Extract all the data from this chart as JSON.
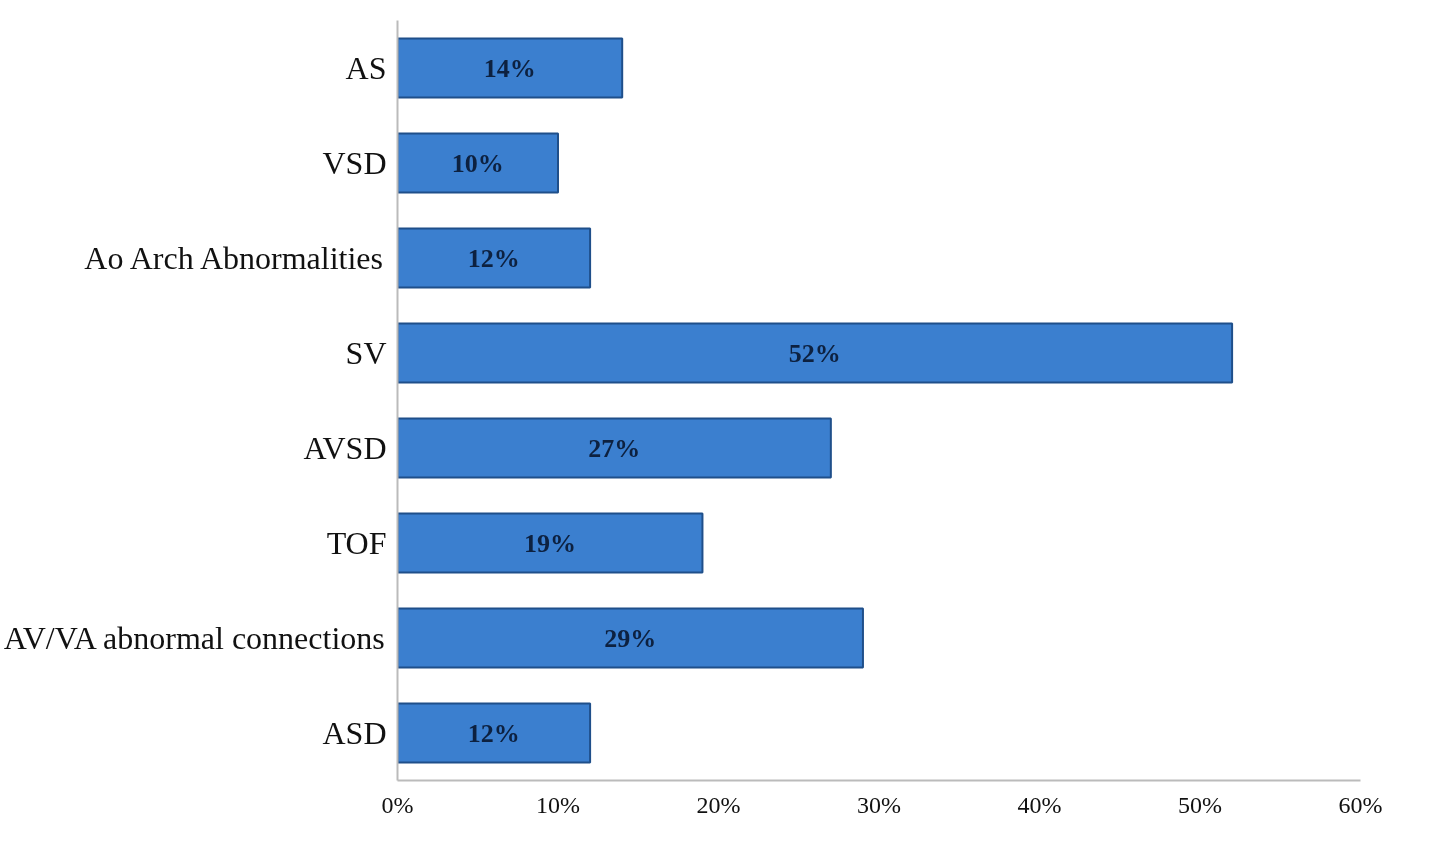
{
  "chart_data": {
    "type": "bar",
    "orientation": "horizontal",
    "categories": [
      "AS",
      "VSD",
      "Ao Arch Abnormalities",
      "SV",
      "AVSD",
      "TOF",
      "AV/VA abnormal connections",
      "ASD"
    ],
    "values": [
      14,
      10,
      12,
      52,
      27,
      19,
      29,
      12
    ],
    "value_labels": [
      "14%",
      "10%",
      "12%",
      "52%",
      "27%",
      "19%",
      "29%",
      "12%"
    ],
    "color": "#3b7fcf",
    "xlim": [
      0,
      60
    ],
    "xticks": [
      {
        "value": 0,
        "label": "0%"
      },
      {
        "value": 10,
        "label": "10%"
      },
      {
        "value": 20,
        "label": "20%"
      },
      {
        "value": 30,
        "label": "30%"
      },
      {
        "value": 40,
        "label": "40%"
      },
      {
        "value": 50,
        "label": "50%"
      },
      {
        "value": 60,
        "label": "60%"
      }
    ],
    "grid": false
  }
}
